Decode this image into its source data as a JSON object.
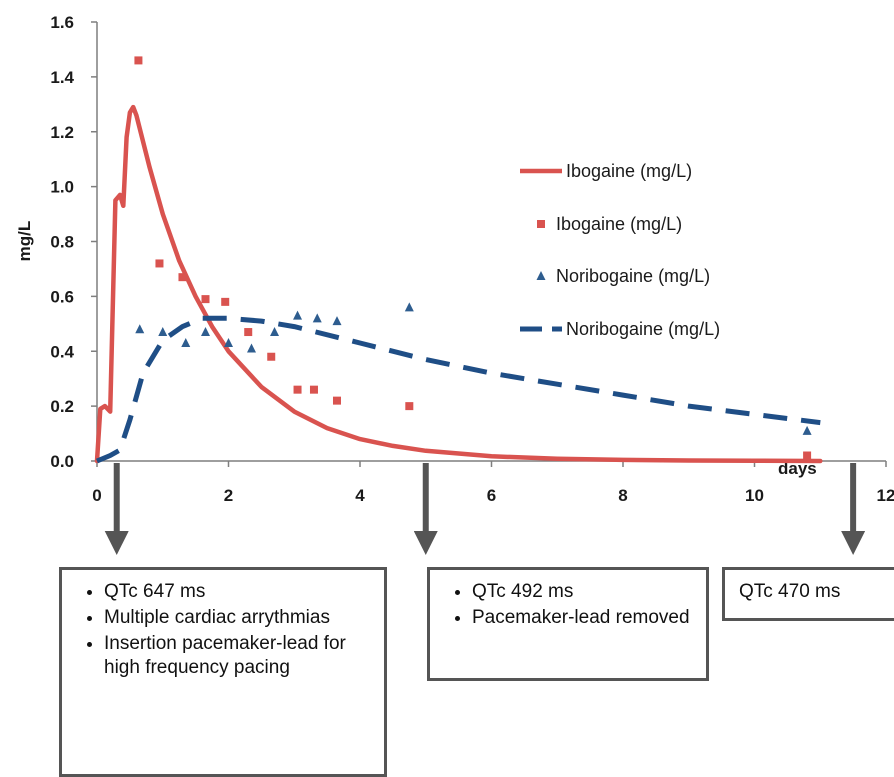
{
  "chart_data": {
    "type": "line",
    "ylabel": "mg/L",
    "xlabel": "days",
    "xlim": [
      0,
      12
    ],
    "ylim": [
      0.0,
      1.6
    ],
    "x_ticks": [
      "0",
      "2",
      "4",
      "6",
      "8",
      "10",
      "12"
    ],
    "y_ticks": [
      "0.0",
      "0.2",
      "0.4",
      "0.6",
      "0.8",
      "1.0",
      "1.2",
      "1.4",
      "1.6"
    ],
    "grid": false,
    "legend_position": "right",
    "series": [
      {
        "name": "Ibogaine (mg/L)",
        "style": "solid-line",
        "color": "#d9534f",
        "x": [
          0.0,
          0.05,
          0.12,
          0.2,
          0.28,
          0.35,
          0.4,
          0.45,
          0.5,
          0.55,
          0.6,
          0.8,
          1.0,
          1.25,
          1.5,
          1.75,
          2.0,
          2.5,
          3.0,
          3.5,
          4.0,
          4.5,
          5.0,
          6.0,
          7.0,
          8.0,
          9.0,
          10.0,
          11.0
        ],
        "y": [
          0.0,
          0.19,
          0.2,
          0.18,
          0.95,
          0.97,
          0.93,
          1.18,
          1.27,
          1.29,
          1.26,
          1.07,
          0.9,
          0.73,
          0.6,
          0.49,
          0.4,
          0.27,
          0.18,
          0.12,
          0.08,
          0.055,
          0.037,
          0.017,
          0.008,
          0.004,
          0.002,
          0.001,
          0.0
        ]
      },
      {
        "name": "Ibogaine  (mg/L)",
        "style": "square-markers",
        "color": "#d9534f",
        "x": [
          0.63,
          0.95,
          1.3,
          1.65,
          1.95,
          2.3,
          2.65,
          3.05,
          3.3,
          3.65,
          4.75,
          10.8
        ],
        "y": [
          1.46,
          0.72,
          0.67,
          0.59,
          0.58,
          0.47,
          0.38,
          0.26,
          0.26,
          0.22,
          0.2,
          0.02
        ]
      },
      {
        "name": "Noribogaine (mg/L)",
        "style": "triangle-markers",
        "color": "#2e5d8f",
        "x": [
          0.65,
          1.0,
          1.35,
          1.65,
          2.0,
          2.35,
          2.7,
          3.05,
          3.35,
          3.65,
          4.75,
          10.8
        ],
        "y": [
          0.48,
          0.47,
          0.43,
          0.47,
          0.43,
          0.41,
          0.47,
          0.53,
          0.52,
          0.51,
          0.56,
          0.11
        ]
      },
      {
        "name": "Noribogaine (mg/L)",
        "style": "dashed-line",
        "color": "#1f4e86",
        "x": [
          0.0,
          0.2,
          0.35,
          0.5,
          0.7,
          1.0,
          1.3,
          1.6,
          2.0,
          2.5,
          3.0,
          4.0,
          5.0,
          6.0,
          7.0,
          8.0,
          9.0,
          10.0,
          11.0
        ],
        "y": [
          0.0,
          0.02,
          0.04,
          0.15,
          0.32,
          0.44,
          0.49,
          0.52,
          0.52,
          0.51,
          0.49,
          0.43,
          0.37,
          0.32,
          0.28,
          0.24,
          0.2,
          0.17,
          0.14
        ]
      }
    ]
  },
  "annotations": [
    {
      "day": 0.3,
      "items": [
        "QTc 647 ms",
        "Multiple cardiac arrythmias",
        "Insertion pacemaker-lead for high frequency pacing"
      ]
    },
    {
      "day": 5.0,
      "items": [
        "QTc 492 ms",
        "Pacemaker-lead removed"
      ]
    },
    {
      "day": 11.5,
      "text": "QTc 470 ms"
    }
  ]
}
